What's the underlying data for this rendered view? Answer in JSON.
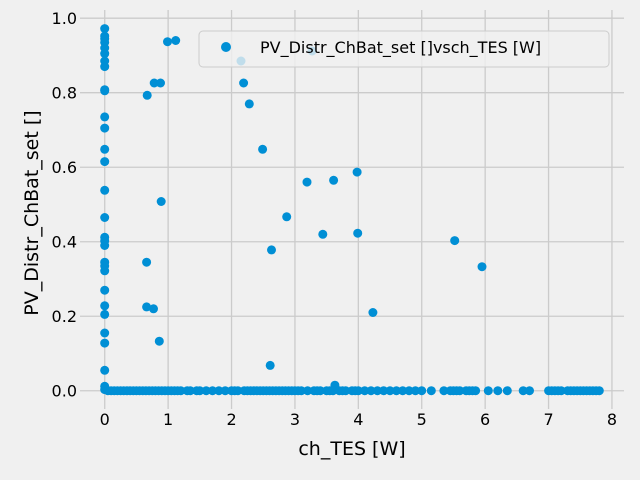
{
  "chart_data": {
    "type": "scatter",
    "title": "",
    "xlabel": "ch_TES [W]",
    "ylabel": "PV_Distr_ChBat_set []",
    "xlim": [
      -0.39,
      8.19
    ],
    "ylim": [
      -0.049,
      1.022
    ],
    "xticks": [
      0,
      1,
      2,
      3,
      4,
      5,
      6,
      7,
      8
    ],
    "yticks": [
      0.0,
      0.2,
      0.4,
      0.6,
      0.8,
      1.0
    ],
    "xtick_labels": [
      "0",
      "1",
      "2",
      "3",
      "4",
      "5",
      "6",
      "7",
      "8"
    ],
    "ytick_labels": [
      "0.0",
      "0.2",
      "0.4",
      "0.6",
      "0.8",
      "1.0"
    ],
    "grid": true,
    "legend_position": "top-right",
    "series": [
      {
        "name": "PV_Distr_ChBat_set []vsch_TES [W]",
        "color": "#008fd5",
        "points": [
          [
            0,
            0.972
          ],
          [
            0,
            0.952
          ],
          [
            0,
            0.945
          ],
          [
            0,
            0.935
          ],
          [
            0,
            0.92
          ],
          [
            0,
            0.905
          ],
          [
            0,
            0.885
          ],
          [
            0,
            0.87
          ],
          [
            0,
            0.808
          ],
          [
            0,
            0.805
          ],
          [
            0,
            0.735
          ],
          [
            0,
            0.705
          ],
          [
            0,
            0.648
          ],
          [
            0,
            0.615
          ],
          [
            0,
            0.538
          ],
          [
            0,
            0.465
          ],
          [
            0,
            0.412
          ],
          [
            0,
            0.402
          ],
          [
            0,
            0.39
          ],
          [
            0,
            0.345
          ],
          [
            0,
            0.335
          ],
          [
            0,
            0.322
          ],
          [
            0,
            0.27
          ],
          [
            0,
            0.228
          ],
          [
            0,
            0.205
          ],
          [
            0,
            0.155
          ],
          [
            0,
            0.128
          ],
          [
            0,
            0.055
          ],
          [
            0,
            0.012
          ],
          [
            0,
            0.003
          ],
          [
            0.66,
            0.345
          ],
          [
            0.66,
            0.225
          ],
          [
            0.67,
            0.793
          ],
          [
            0.77,
            0.22
          ],
          [
            0.78,
            0.826
          ],
          [
            0.86,
            0.133
          ],
          [
            0.88,
            0.826
          ],
          [
            0.89,
            0.508
          ],
          [
            0.99,
            0.937
          ],
          [
            1.12,
            0.94
          ],
          [
            2.15,
            0.885
          ],
          [
            2.19,
            0.826
          ],
          [
            2.28,
            0.77
          ],
          [
            2.49,
            0.648
          ],
          [
            2.61,
            0.068
          ],
          [
            2.63,
            0.378
          ],
          [
            2.87,
            0.467
          ],
          [
            3.19,
            0.56
          ],
          [
            3.27,
            0.912
          ],
          [
            3.44,
            0.42
          ],
          [
            3.61,
            0.565
          ],
          [
            3.63,
            0.015
          ],
          [
            3.98,
            0.587
          ],
          [
            3.99,
            0.423
          ],
          [
            4.23,
            0.21
          ],
          [
            5.52,
            0.403
          ],
          [
            5.95,
            0.333
          ],
          [
            0.05,
            0
          ],
          [
            0.1,
            0
          ],
          [
            0.15,
            0
          ],
          [
            0.2,
            0
          ],
          [
            0.25,
            0
          ],
          [
            0.3,
            0
          ],
          [
            0.35,
            0
          ],
          [
            0.4,
            0
          ],
          [
            0.45,
            0
          ],
          [
            0.5,
            0
          ],
          [
            0.55,
            0
          ],
          [
            0.6,
            0
          ],
          [
            0.65,
            0
          ],
          [
            0.7,
            0
          ],
          [
            0.75,
            0
          ],
          [
            0.8,
            0
          ],
          [
            0.85,
            0
          ],
          [
            0.9,
            0
          ],
          [
            0.95,
            0
          ],
          [
            1.0,
            0
          ],
          [
            1.05,
            0
          ],
          [
            1.1,
            0
          ],
          [
            1.15,
            0
          ],
          [
            1.2,
            0
          ],
          [
            1.3,
            0
          ],
          [
            1.35,
            0
          ],
          [
            1.45,
            0
          ],
          [
            1.5,
            0
          ],
          [
            1.6,
            0
          ],
          [
            1.7,
            0
          ],
          [
            1.8,
            0
          ],
          [
            1.9,
            0
          ],
          [
            2.0,
            0
          ],
          [
            2.05,
            0
          ],
          [
            2.1,
            0
          ],
          [
            2.2,
            0
          ],
          [
            2.25,
            0
          ],
          [
            2.3,
            0
          ],
          [
            2.35,
            0
          ],
          [
            2.4,
            0
          ],
          [
            2.45,
            0
          ],
          [
            2.5,
            0
          ],
          [
            2.55,
            0
          ],
          [
            2.6,
            0
          ],
          [
            2.65,
            0
          ],
          [
            2.7,
            0
          ],
          [
            2.75,
            0
          ],
          [
            2.8,
            0
          ],
          [
            2.85,
            0
          ],
          [
            2.9,
            0
          ],
          [
            2.95,
            0
          ],
          [
            3.0,
            0
          ],
          [
            3.05,
            0
          ],
          [
            3.1,
            0
          ],
          [
            3.2,
            0
          ],
          [
            3.3,
            0
          ],
          [
            3.35,
            0
          ],
          [
            3.4,
            0
          ],
          [
            3.5,
            0
          ],
          [
            3.55,
            0
          ],
          [
            3.6,
            0
          ],
          [
            3.7,
            0
          ],
          [
            3.75,
            0
          ],
          [
            3.8,
            0
          ],
          [
            3.9,
            0
          ],
          [
            3.95,
            0
          ],
          [
            4.0,
            0
          ],
          [
            4.1,
            0
          ],
          [
            4.2,
            0
          ],
          [
            4.3,
            0
          ],
          [
            4.4,
            0
          ],
          [
            4.5,
            0
          ],
          [
            4.6,
            0
          ],
          [
            4.7,
            0
          ],
          [
            4.8,
            0
          ],
          [
            4.9,
            0
          ],
          [
            5.0,
            0
          ],
          [
            5.15,
            0
          ],
          [
            5.35,
            0
          ],
          [
            5.45,
            0
          ],
          [
            5.5,
            0
          ],
          [
            5.55,
            0
          ],
          [
            5.6,
            0
          ],
          [
            5.7,
            0
          ],
          [
            5.75,
            0
          ],
          [
            5.8,
            0
          ],
          [
            5.85,
            0
          ],
          [
            6.05,
            0
          ],
          [
            6.2,
            0
          ],
          [
            6.35,
            0
          ],
          [
            6.6,
            0
          ],
          [
            6.7,
            0
          ],
          [
            7.0,
            0
          ],
          [
            7.05,
            0
          ],
          [
            7.1,
            0
          ],
          [
            7.15,
            0
          ],
          [
            7.2,
            0
          ],
          [
            7.3,
            0
          ],
          [
            7.35,
            0
          ],
          [
            7.4,
            0
          ],
          [
            7.45,
            0
          ],
          [
            7.5,
            0
          ],
          [
            7.55,
            0
          ],
          [
            7.6,
            0
          ],
          [
            7.65,
            0
          ],
          [
            7.7,
            0
          ],
          [
            7.75,
            0
          ],
          [
            7.8,
            0
          ]
        ]
      }
    ]
  }
}
